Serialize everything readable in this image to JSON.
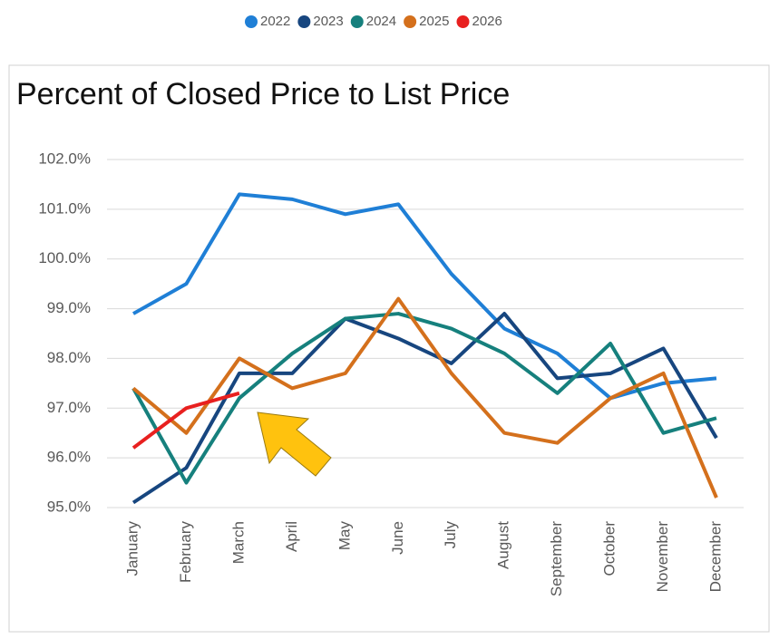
{
  "chart_data": {
    "type": "line",
    "title": "Percent of Closed Price to List Price",
    "categories": [
      "January",
      "February",
      "March",
      "April",
      "May",
      "June",
      "July",
      "August",
      "September",
      "October",
      "November",
      "December"
    ],
    "series": [
      {
        "name": "2022",
        "color": "#1f7fd6",
        "values": [
          98.9,
          99.5,
          101.3,
          101.2,
          100.9,
          101.1,
          99.7,
          98.6,
          98.1,
          97.2,
          97.5,
          97.6
        ]
      },
      {
        "name": "2023",
        "color": "#17467f",
        "values": [
          95.1,
          95.8,
          97.7,
          97.7,
          98.8,
          98.4,
          97.9,
          98.9,
          97.6,
          97.7,
          98.2,
          96.4
        ]
      },
      {
        "name": "2024",
        "color": "#16807d",
        "values": [
          97.4,
          95.5,
          97.2,
          98.1,
          98.8,
          98.9,
          98.6,
          98.1,
          97.3,
          98.3,
          96.5,
          96.8
        ]
      },
      {
        "name": "2025",
        "color": "#d4701c",
        "values": [
          97.4,
          96.5,
          98.0,
          97.4,
          97.7,
          99.2,
          97.7,
          96.5,
          96.3,
          97.2,
          97.7,
          95.2
        ]
      },
      {
        "name": "2026",
        "color": "#e8201f",
        "values": [
          96.2,
          97.0,
          97.3,
          null,
          null,
          null,
          null,
          null,
          null,
          null,
          null,
          null
        ]
      }
    ],
    "ylim": [
      95,
      102
    ],
    "yticks": [
      {
        "value": 95,
        "label": "95.0%"
      },
      {
        "value": 96,
        "label": "96.0%"
      },
      {
        "value": 97,
        "label": "97.0%"
      },
      {
        "value": 98,
        "label": "98.0%"
      },
      {
        "value": 99,
        "label": "99.0%"
      },
      {
        "value": 100,
        "label": "100.0%"
      },
      {
        "value": 101,
        "label": "101.0%"
      },
      {
        "value": 102,
        "label": "102.0%"
      }
    ],
    "grid": true,
    "legend": "top"
  }
}
